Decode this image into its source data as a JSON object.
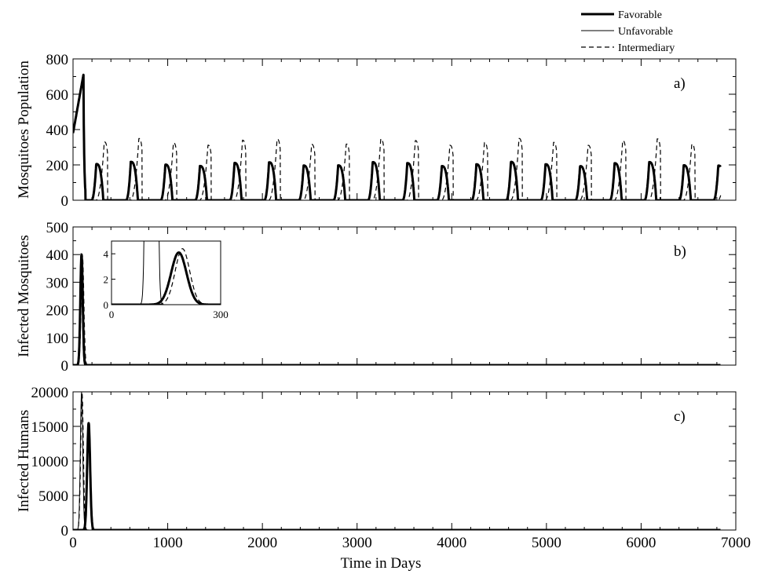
{
  "chart_data": {
    "type": "line",
    "legend": {
      "placement": "top-right",
      "entries": [
        {
          "name": "Favorable",
          "style": "thick-solid"
        },
        {
          "name": "Unfavorable",
          "style": "thin-solid"
        },
        {
          "name": "Intermediary",
          "style": "dashed"
        }
      ]
    },
    "xlabel": "Time in Days",
    "xlim": [
      0,
      7000
    ],
    "xticks": [
      "0",
      "1000",
      "2000",
      "3000",
      "4000",
      "5000",
      "6000",
      "7000"
    ],
    "xtick_values": [
      0,
      1000,
      2000,
      3000,
      4000,
      5000,
      6000,
      7000
    ],
    "grid": false,
    "panels": [
      {
        "id": "a",
        "label": "a)",
        "ylabel": "Mosquitoes Population",
        "ylim": [
          0,
          800
        ],
        "yticks": [
          "0",
          "200",
          "400",
          "600",
          "800"
        ],
        "ytick_values": [
          0,
          200,
          400,
          600,
          800
        ],
        "period_days": 365,
        "end_day": 6840,
        "series": [
          {
            "name": "Favorable",
            "initial_peak": 710,
            "seasonal_peak": 205,
            "peak_day_in_cycle": 245,
            "start_day_in_cycle": 195,
            "end_day_in_cycle": 320
          },
          {
            "name": "Unfavorable",
            "initial_peak": 700,
            "seasonal_peak": 0,
            "peak_day_in_cycle": 0,
            "start_day_in_cycle": 0,
            "end_day_in_cycle": 0
          },
          {
            "name": "Intermediary",
            "initial_peak": 700,
            "seasonal_peak": 330,
            "peak_day_in_cycle": 330,
            "start_day_in_cycle": 240,
            "end_day_in_cycle": 390
          }
        ]
      },
      {
        "id": "b",
        "label": "b)",
        "ylabel": "Infected Mosquitoes",
        "ylim": [
          0,
          500
        ],
        "yticks": [
          "0",
          "100",
          "200",
          "300",
          "400",
          "500"
        ],
        "ytick_values": [
          0,
          100,
          200,
          300,
          400,
          500
        ],
        "series": [
          {
            "name": "Favorable",
            "peak_day": 90,
            "peak_value": 400,
            "width": 18
          },
          {
            "name": "Unfavorable",
            "peak_day": 85,
            "peak_value": 405,
            "width": 16
          },
          {
            "name": "Intermediary",
            "peak_day": 100,
            "peak_value": 395,
            "width": 20
          }
        ],
        "inset": {
          "xlim": [
            0,
            300
          ],
          "ylim": [
            0,
            5
          ],
          "xticks": [
            "0",
            "300"
          ],
          "xtick_values": [
            0,
            300
          ],
          "yticks": [
            "0",
            "2",
            "4"
          ],
          "ytick_values": [
            0,
            2,
            4
          ],
          "series": [
            {
              "name": "Favorable",
              "peak_day": 185,
              "peak_value": 4.1,
              "width": 30
            },
            {
              "name": "Unfavorable",
              "peak_day": 110,
              "peak_value": 400,
              "width": 10
            },
            {
              "name": "Intermediary",
              "peak_day": 195,
              "peak_value": 4.4,
              "width": 28
            }
          ]
        }
      },
      {
        "id": "c",
        "label": "c)",
        "ylabel": "Infected Humans",
        "ylim": [
          0,
          20000
        ],
        "yticks": [
          "0",
          "5000",
          "10000",
          "15000",
          "20000"
        ],
        "ytick_values": [
          0,
          5000,
          10000,
          15000,
          20000
        ],
        "series": [
          {
            "name": "Favorable",
            "peak_day": 165,
            "peak_value": 15500,
            "width": 22
          },
          {
            "name": "Unfavorable",
            "peak_day": 90,
            "peak_value": 19900,
            "width": 18
          },
          {
            "name": "Intermediary",
            "peak_day": 95,
            "peak_value": 19800,
            "width": 20
          }
        ]
      }
    ]
  }
}
